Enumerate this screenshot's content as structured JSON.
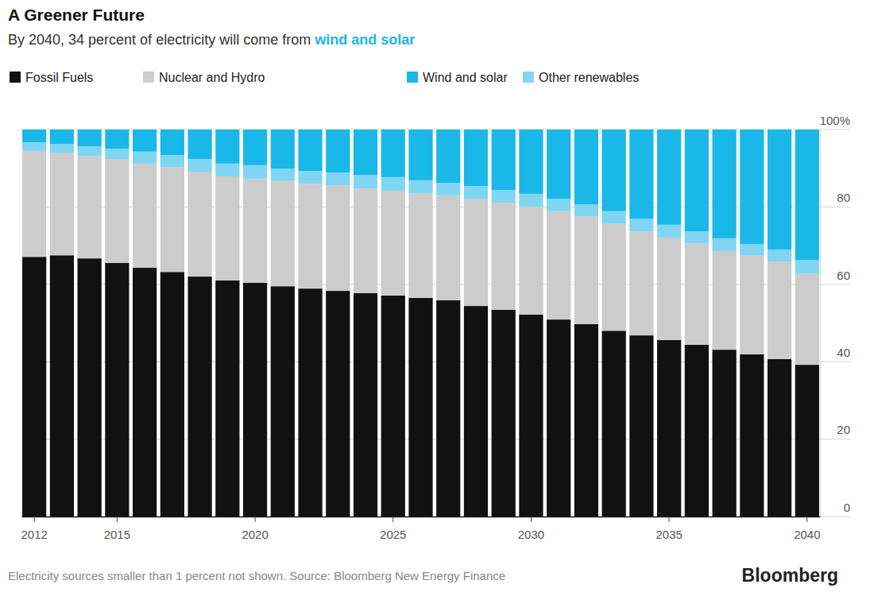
{
  "chart_data": {
    "type": "bar",
    "stacked": true,
    "title": "A Greener Future",
    "subtitle": "By 2040, 34 percent of electricity will come from wind and solar",
    "subtitle_highlight": "wind and solar",
    "source": "Electricity sources smaller than 1 percent not shown. Source: Bloomberg New Energy Finance",
    "logo": "Bloomberg",
    "categories": [
      "2012",
      null,
      null,
      "2015",
      null,
      null,
      null,
      null,
      "2020",
      null,
      null,
      null,
      null,
      "2025",
      null,
      null,
      null,
      null,
      "2030",
      null,
      null,
      null,
      null,
      "2035",
      null,
      null,
      null,
      null,
      "2040"
    ],
    "series": [
      {
        "name": "Fossil Fuels",
        "color": "#111111",
        "values": [
          67.1,
          67.5,
          66.7,
          65.5,
          64.3,
          63.2,
          62.0,
          61.0,
          60.4,
          59.5,
          58.9,
          58.3,
          57.7,
          57.1,
          56.5,
          55.9,
          54.4,
          53.4,
          52.2,
          50.9,
          49.7,
          48.0,
          46.8,
          45.6,
          44.4,
          43.1,
          41.9,
          40.7,
          39.2
        ]
      },
      {
        "name": "Nuclear and Hydro",
        "color": "#cccccc",
        "values": [
          27.4,
          26.5,
          26.5,
          26.9,
          26.9,
          27.1,
          27.1,
          26.9,
          26.9,
          27.2,
          27.1,
          27.3,
          27.1,
          27.1,
          27.1,
          27.1,
          27.7,
          27.7,
          27.9,
          28.0,
          27.9,
          27.6,
          26.9,
          26.5,
          26.2,
          25.5,
          25.5,
          25.2,
          23.6
        ]
      },
      {
        "name": "Wind and solar",
        "color": "#1ab8e8",
        "values": [
          3.3,
          3.7,
          4.3,
          5.0,
          5.7,
          6.6,
          7.6,
          8.8,
          9.2,
          10.1,
          10.7,
          11.1,
          11.7,
          12.3,
          13.1,
          13.8,
          14.6,
          15.6,
          16.6,
          17.9,
          19.3,
          21.1,
          23.0,
          24.6,
          26.3,
          28.1,
          29.6,
          31.0,
          33.7
        ]
      },
      {
        "name": "Other renewables",
        "color": "#80d5f2",
        "values": [
          2.2,
          2.3,
          2.5,
          2.6,
          3.1,
          3.1,
          3.3,
          3.3,
          3.5,
          3.2,
          3.3,
          3.3,
          3.5,
          3.5,
          3.3,
          3.2,
          3.3,
          3.3,
          3.3,
          3.2,
          3.1,
          3.3,
          3.3,
          3.3,
          3.1,
          3.3,
          3.0,
          3.1,
          3.5
        ]
      }
    ],
    "ylim": [
      0,
      100
    ],
    "yticks": [
      0,
      20,
      40,
      60,
      80,
      {
        "value": 100,
        "label": "100%"
      }
    ],
    "grid": true,
    "legend": "top-left"
  }
}
